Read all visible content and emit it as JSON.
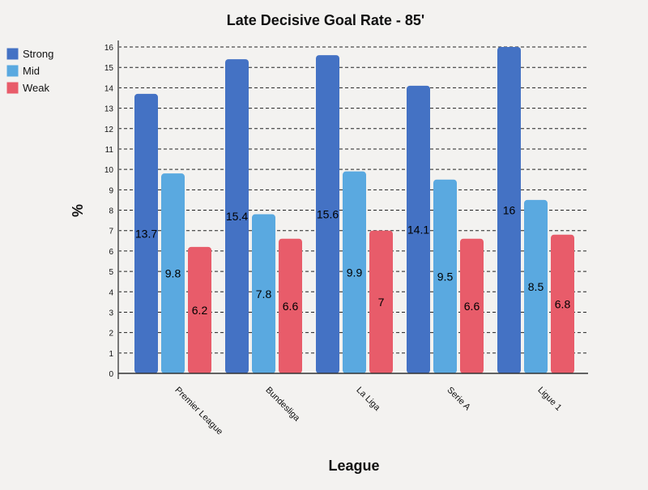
{
  "chart_data": {
    "type": "bar",
    "title": "Late Decisive Goal Rate - 85'",
    "xlabel": "League",
    "ylabel": "%",
    "categories": [
      "Premier League",
      "Bundesliga",
      "La Liga",
      "Serie A",
      "Ligue 1"
    ],
    "series": [
      {
        "name": "Strong",
        "color": "#4472c4",
        "values": [
          13.7,
          15.4,
          15.6,
          14.1,
          16
        ]
      },
      {
        "name": "Mid",
        "color": "#5aa9e0",
        "values": [
          9.8,
          7.8,
          9.9,
          9.5,
          8.5
        ]
      },
      {
        "name": "Weak",
        "color": "#e85c6a",
        "values": [
          6.2,
          6.6,
          7,
          6.6,
          6.8
        ]
      }
    ],
    "ylim": [
      0,
      16
    ],
    "yticks": [
      0,
      1,
      2,
      3,
      4,
      5,
      6,
      7,
      8,
      9,
      10,
      11,
      12,
      13,
      14,
      15,
      16
    ],
    "grid": true,
    "legend": "top-left",
    "data_labels": true
  }
}
